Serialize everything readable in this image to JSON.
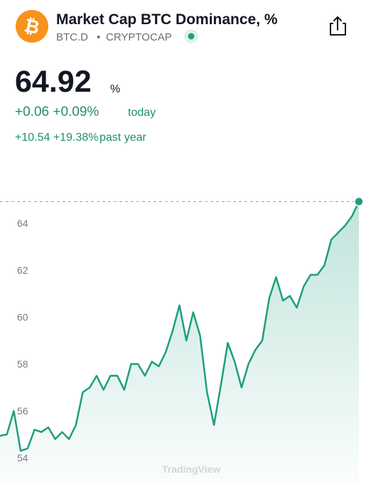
{
  "header": {
    "logo": "₿",
    "title": "Market Cap BTC Dominance, %",
    "symbol": "BTC.D",
    "separator": "•",
    "exchange": "CRYPTOCAP"
  },
  "quote": {
    "price": "64.92",
    "unit": "%",
    "change_today": "+0.06 +0.09%",
    "today_label": "today",
    "change_year": "+10.54 +19.38%",
    "year_label": "past year"
  },
  "chart_data": {
    "type": "area",
    "color": "#1f9e7f",
    "watermark": "TradingView",
    "values": [
      54.94,
      55.0,
      56.0,
      54.3,
      54.4,
      55.2,
      55.1,
      55.3,
      54.8,
      55.1,
      54.8,
      55.4,
      56.8,
      57.0,
      57.5,
      56.9,
      57.5,
      57.5,
      56.9,
      58.0,
      58.0,
      57.5,
      58.1,
      57.9,
      58.5,
      59.4,
      60.5,
      59.0,
      60.2,
      59.2,
      56.8,
      55.4,
      57.1,
      58.9,
      58.1,
      57.0,
      58.0,
      58.6,
      59.0,
      60.8,
      61.7,
      60.7,
      60.9,
      60.4,
      61.3,
      61.8,
      61.8,
      62.2,
      63.3,
      63.6,
      63.9,
      64.3,
      64.92
    ],
    "ylim": [
      52.91,
      65.33
    ],
    "yticks": [
      54,
      56,
      58,
      60,
      62,
      64
    ]
  }
}
